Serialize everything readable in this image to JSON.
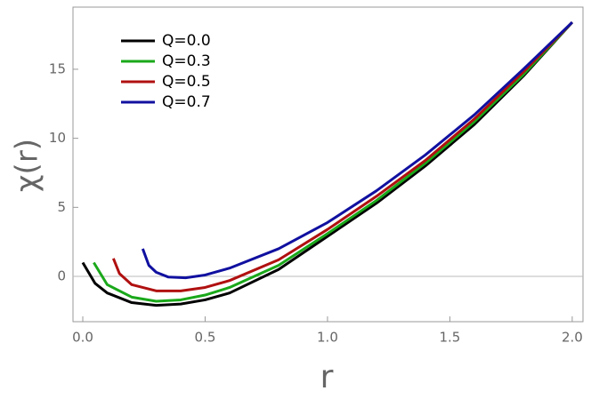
{
  "chart_data": {
    "type": "line",
    "xlabel": "r",
    "ylabel": "χ(r)",
    "xlim": [
      -0.04,
      2.044
    ],
    "ylim": [
      -3.28,
      19.5
    ],
    "xticks": [
      {
        "value": 0,
        "label": "0.0"
      },
      {
        "value": 0.5,
        "label": "0.5"
      },
      {
        "value": 1,
        "label": "1.0"
      },
      {
        "value": 1.5,
        "label": "1.5"
      },
      {
        "value": 2,
        "label": "2.0"
      }
    ],
    "yticks": [
      0,
      5,
      10,
      15
    ],
    "zero_line": true,
    "legend": "upper left",
    "series": [
      {
        "name": "Q=0.0",
        "color": "#000000",
        "x": [
          0,
          0.05,
          0.1,
          0.2,
          0.3,
          0.4,
          0.5,
          0.6,
          0.8,
          1.0,
          1.2,
          1.4,
          1.6,
          1.8,
          2.0
        ],
        "values": [
          1.0,
          -0.5,
          -1.2,
          -1.9,
          -2.1,
          -2.0,
          -1.7,
          -1.2,
          0.5,
          2.9,
          5.3,
          8.0,
          11.0,
          14.5,
          18.4
        ]
      },
      {
        "name": "Q=0.3",
        "color": "#1aa81a",
        "x": [
          0.045,
          0.1,
          0.2,
          0.3,
          0.4,
          0.5,
          0.6,
          0.8,
          1.0,
          1.2,
          1.4,
          1.6,
          1.8,
          2.0
        ],
        "values": [
          1.0,
          -0.6,
          -1.5,
          -1.8,
          -1.7,
          -1.35,
          -0.8,
          0.8,
          3.1,
          5.5,
          8.2,
          11.2,
          14.6,
          18.4
        ]
      },
      {
        "name": "Q=0.5",
        "color": "#b01010",
        "x": [
          0.125,
          0.15,
          0.2,
          0.3,
          0.4,
          0.5,
          0.6,
          0.8,
          1.0,
          1.2,
          1.4,
          1.6,
          1.8,
          2.0
        ],
        "values": [
          1.3,
          0.2,
          -0.6,
          -1.05,
          -1.05,
          -0.8,
          -0.3,
          1.2,
          3.4,
          5.8,
          8.4,
          11.4,
          14.8,
          18.4
        ]
      },
      {
        "name": "Q=0.7",
        "color": "#1010a0",
        "x": [
          0.245,
          0.27,
          0.3,
          0.35,
          0.42,
          0.5,
          0.6,
          0.8,
          1.0,
          1.2,
          1.4,
          1.6,
          1.8,
          2.0
        ],
        "values": [
          2.0,
          0.8,
          0.3,
          -0.05,
          -0.1,
          0.1,
          0.6,
          2.0,
          3.9,
          6.2,
          8.8,
          11.7,
          15.0,
          18.4
        ]
      }
    ]
  }
}
